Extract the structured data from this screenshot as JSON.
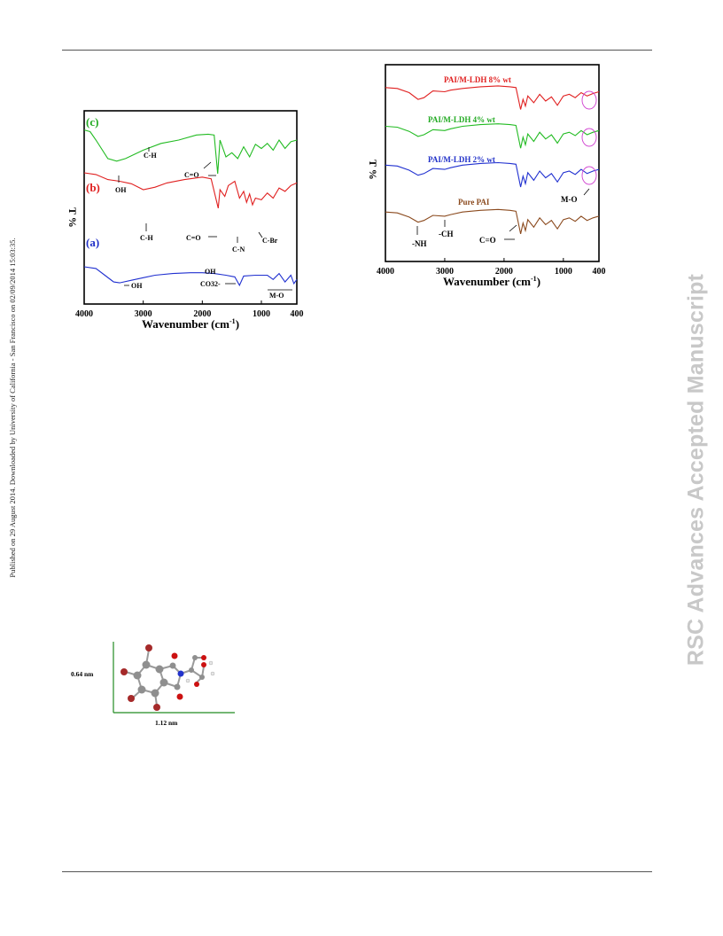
{
  "page": {
    "side_note": "Published on 29 August 2014. Downloaded by University of California - San Francisco on 02/09/2014 15:03:35.",
    "watermark": "RSC Advances Accepted Manuscript"
  },
  "chart_data": [
    {
      "type": "line",
      "panel": "left",
      "xlabel": "Wavenumber (cm-1)",
      "ylabel": "T %",
      "xlim": [
        4000,
        400
      ],
      "x_reversed": true,
      "xticks": [
        4000,
        3000,
        2000,
        1000,
        400
      ],
      "series": [
        {
          "name": "(c)",
          "color": "#22bb22",
          "label_color": "#22aa22",
          "points": [
            [
              4000,
              92
            ],
            [
              3900,
              90
            ],
            [
              3800,
              80
            ],
            [
              3600,
              58
            ],
            [
              3450,
              55
            ],
            [
              3300,
              58
            ],
            [
              3000,
              68
            ],
            [
              2700,
              76
            ],
            [
              2400,
              80
            ],
            [
              2100,
              86
            ],
            [
              1900,
              87
            ],
            [
              1800,
              86
            ],
            [
              1740,
              40
            ],
            [
              1700,
              80
            ],
            [
              1600,
              60
            ],
            [
              1500,
              65
            ],
            [
              1400,
              58
            ],
            [
              1300,
              72
            ],
            [
              1200,
              60
            ],
            [
              1100,
              75
            ],
            [
              1000,
              70
            ],
            [
              900,
              76
            ],
            [
              800,
              68
            ],
            [
              700,
              80
            ],
            [
              600,
              70
            ],
            [
              500,
              78
            ],
            [
              400,
              80
            ]
          ]
        },
        {
          "name": "(b)",
          "color": "#e02020",
          "label_color": "#e02020",
          "points": [
            [
              4000,
              60
            ],
            [
              3800,
              58
            ],
            [
              3600,
              52
            ],
            [
              3400,
              50
            ],
            [
              3200,
              47
            ],
            [
              3000,
              40
            ],
            [
              2800,
              43
            ],
            [
              2600,
              48
            ],
            [
              2300,
              52
            ],
            [
              2000,
              55
            ],
            [
              1850,
              53
            ],
            [
              1730,
              18
            ],
            [
              1700,
              40
            ],
            [
              1620,
              32
            ],
            [
              1560,
              45
            ],
            [
              1450,
              50
            ],
            [
              1370,
              30
            ],
            [
              1300,
              38
            ],
            [
              1250,
              25
            ],
            [
              1200,
              35
            ],
            [
              1150,
              22
            ],
            [
              1100,
              30
            ],
            [
              1000,
              28
            ],
            [
              900,
              36
            ],
            [
              800,
              30
            ],
            [
              700,
              42
            ],
            [
              600,
              38
            ],
            [
              500,
              45
            ],
            [
              400,
              48
            ]
          ]
        },
        {
          "name": "(a)",
          "color": "#2030d0",
          "label_color": "#2030c8",
          "points": [
            [
              4000,
              20
            ],
            [
              3800,
              18
            ],
            [
              3650,
              10
            ],
            [
              3500,
              2
            ],
            [
              3400,
              1
            ],
            [
              3200,
              4
            ],
            [
              3000,
              7
            ],
            [
              2800,
              10
            ],
            [
              2500,
              12
            ],
            [
              2200,
              13
            ],
            [
              2000,
              13
            ],
            [
              1800,
              12
            ],
            [
              1600,
              10
            ],
            [
              1450,
              8
            ],
            [
              1370,
              -2
            ],
            [
              1300,
              9
            ],
            [
              1100,
              10
            ],
            [
              900,
              10
            ],
            [
              800,
              5
            ],
            [
              700,
              12
            ],
            [
              600,
              2
            ],
            [
              500,
              10
            ],
            [
              450,
              0
            ],
            [
              400,
              5
            ]
          ]
        }
      ],
      "annotations": [
        "OH",
        "C-H",
        "C=O",
        "C-H",
        "C=O",
        "C-N",
        "C-Br",
        "OH",
        "OH",
        "CO32-",
        "M-O"
      ]
    },
    {
      "type": "line",
      "panel": "right",
      "xlabel": "Wavenumber (cm-1)",
      "ylabel": "T %",
      "xlim": [
        4000,
        400
      ],
      "x_reversed": true,
      "xticks": [
        4000,
        3000,
        2000,
        1000,
        400
      ],
      "series": [
        {
          "name": "PAI/M-LDH 8% wt",
          "color": "#e02020",
          "points": [
            [
              4000,
              96
            ],
            [
              3800,
              95
            ],
            [
              3600,
              90
            ],
            [
              3450,
              82
            ],
            [
              3350,
              84
            ],
            [
              3200,
              92
            ],
            [
              3000,
              91
            ],
            [
              2900,
              93
            ],
            [
              2700,
              95
            ],
            [
              2400,
              97
            ],
            [
              2100,
              98
            ],
            [
              1900,
              97
            ],
            [
              1800,
              96
            ],
            [
              1720,
              70
            ],
            [
              1680,
              82
            ],
            [
              1640,
              74
            ],
            [
              1600,
              86
            ],
            [
              1500,
              78
            ],
            [
              1400,
              88
            ],
            [
              1300,
              80
            ],
            [
              1200,
              85
            ],
            [
              1100,
              75
            ],
            [
              1000,
              86
            ],
            [
              900,
              88
            ],
            [
              800,
              84
            ],
            [
              700,
              90
            ],
            [
              600,
              86
            ],
            [
              500,
              89
            ],
            [
              400,
              91
            ]
          ]
        },
        {
          "name": "PAI/M-LDH 4% wt",
          "color": "#22bb22",
          "points": [
            [
              4000,
              70
            ],
            [
              3800,
              69
            ],
            [
              3600,
              64
            ],
            [
              3450,
              58
            ],
            [
              3350,
              60
            ],
            [
              3200,
              66
            ],
            [
              3000,
              65
            ],
            [
              2900,
              67
            ],
            [
              2700,
              70
            ],
            [
              2400,
              72
            ],
            [
              2100,
              73
            ],
            [
              1900,
              72
            ],
            [
              1800,
              71
            ],
            [
              1720,
              44
            ],
            [
              1680,
              57
            ],
            [
              1640,
              48
            ],
            [
              1600,
              61
            ],
            [
              1500,
              52
            ],
            [
              1400,
              63
            ],
            [
              1300,
              55
            ],
            [
              1200,
              60
            ],
            [
              1100,
              50
            ],
            [
              1000,
              61
            ],
            [
              900,
              63
            ],
            [
              800,
              59
            ],
            [
              700,
              65
            ],
            [
              600,
              60
            ],
            [
              500,
              63
            ],
            [
              400,
              65
            ]
          ]
        },
        {
          "name": "PAI/M-LDH 2% wt",
          "color": "#2030d0",
          "points": [
            [
              4000,
              46
            ],
            [
              3800,
              45
            ],
            [
              3600,
              40
            ],
            [
              3450,
              34
            ],
            [
              3350,
              36
            ],
            [
              3200,
              42
            ],
            [
              3000,
              41
            ],
            [
              2900,
              43
            ],
            [
              2700,
              46
            ],
            [
              2400,
              48
            ],
            [
              2100,
              49
            ],
            [
              1900,
              48
            ],
            [
              1800,
              47
            ],
            [
              1720,
              20
            ],
            [
              1680,
              33
            ],
            [
              1640,
              24
            ],
            [
              1600,
              37
            ],
            [
              1500,
              28
            ],
            [
              1400,
              39
            ],
            [
              1300,
              31
            ],
            [
              1200,
              36
            ],
            [
              1100,
              26
            ],
            [
              1000,
              37
            ],
            [
              900,
              39
            ],
            [
              800,
              35
            ],
            [
              700,
              41
            ],
            [
              600,
              36
            ],
            [
              500,
              39
            ],
            [
              400,
              41
            ]
          ]
        },
        {
          "name": "Pure PAI",
          "color": "#8b4a1e",
          "points": [
            [
              4000,
              24
            ],
            [
              3800,
              23
            ],
            [
              3600,
              18
            ],
            [
              3450,
              12
            ],
            [
              3350,
              14
            ],
            [
              3200,
              20
            ],
            [
              3000,
              19
            ],
            [
              2900,
              21
            ],
            [
              2700,
              24
            ],
            [
              2400,
              26
            ],
            [
              2100,
              27
            ],
            [
              1900,
              26
            ],
            [
              1800,
              25
            ],
            [
              1720,
              -2
            ],
            [
              1680,
              11
            ],
            [
              1640,
              2
            ],
            [
              1600,
              15
            ],
            [
              1500,
              6
            ],
            [
              1400,
              17
            ],
            [
              1300,
              9
            ],
            [
              1200,
              14
            ],
            [
              1100,
              4
            ],
            [
              1000,
              15
            ],
            [
              900,
              17
            ],
            [
              800,
              13
            ],
            [
              700,
              19
            ],
            [
              600,
              14
            ],
            [
              500,
              17
            ],
            [
              400,
              19
            ]
          ]
        }
      ],
      "annotations": [
        "-NH",
        "-CH",
        "C=O",
        "M-O"
      ]
    }
  ],
  "molecule": {
    "height_label": "0.64 nm",
    "width_label": "1.12 nm"
  }
}
